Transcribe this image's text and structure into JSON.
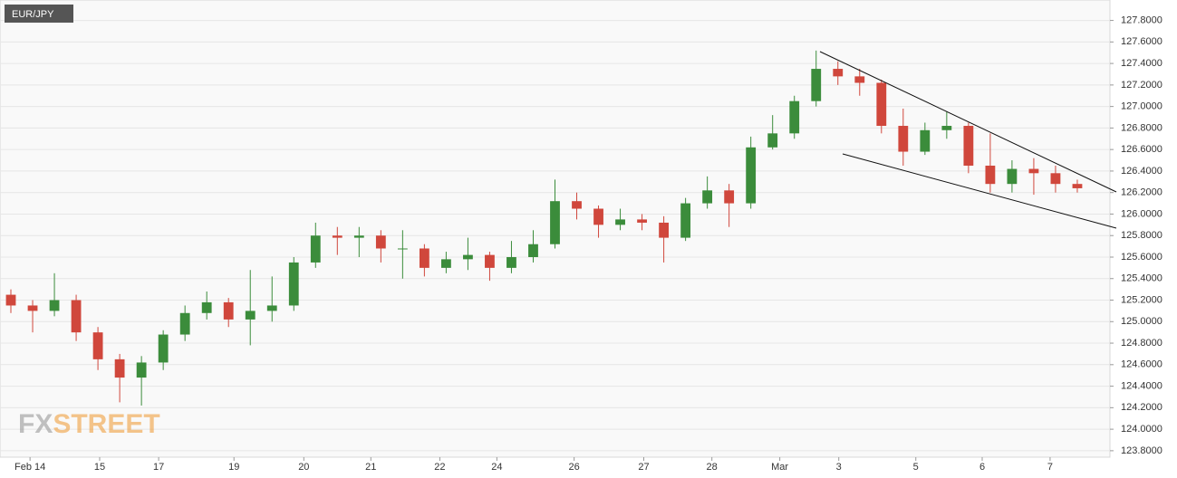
{
  "chart_data": {
    "type": "candlestick",
    "title": "EUR/JPY",
    "brand": [
      "FX",
      "STREET"
    ],
    "up_color": "#3b8c3b",
    "down_color": "#d0473c",
    "grid": true,
    "open": [
      125.25,
      125.15,
      125.1,
      125.2,
      124.9,
      124.65,
      124.48,
      124.62,
      124.88,
      125.08,
      125.18,
      125.02,
      125.1,
      125.15,
      125.55,
      125.8,
      125.78,
      125.8,
      125.68,
      125.68,
      125.5,
      125.58,
      125.62,
      125.5,
      125.6,
      125.72,
      126.12,
      126.05,
      125.9,
      125.95,
      125.92,
      125.78,
      126.1,
      126.22,
      126.1,
      126.62,
      126.75,
      127.05,
      127.35,
      127.28,
      127.22,
      126.82,
      126.58,
      126.78,
      126.82,
      126.45,
      126.28,
      126.42,
      126.38,
      126.28
    ],
    "high": [
      125.3,
      125.2,
      125.45,
      125.25,
      124.95,
      124.7,
      124.68,
      124.92,
      125.15,
      125.28,
      125.22,
      125.48,
      125.42,
      125.6,
      125.92,
      125.88,
      125.88,
      125.85,
      125.85,
      125.72,
      125.65,
      125.78,
      125.65,
      125.75,
      125.85,
      126.32,
      126.2,
      126.08,
      126.05,
      126.0,
      125.98,
      126.15,
      126.35,
      126.28,
      126.72,
      126.92,
      127.1,
      127.52,
      127.42,
      127.35,
      127.25,
      126.98,
      126.85,
      126.95,
      126.85,
      126.75,
      126.5,
      126.52,
      126.45,
      126.32
    ],
    "low": [
      125.08,
      124.9,
      125.05,
      124.82,
      124.55,
      124.25,
      124.22,
      124.55,
      124.82,
      125.02,
      124.95,
      124.78,
      125.0,
      125.1,
      125.5,
      125.62,
      125.6,
      125.55,
      125.4,
      125.42,
      125.45,
      125.48,
      125.38,
      125.45,
      125.55,
      125.68,
      125.95,
      125.78,
      125.85,
      125.85,
      125.55,
      125.75,
      126.05,
      125.88,
      126.05,
      126.6,
      126.7,
      127.0,
      127.2,
      127.1,
      126.75,
      126.45,
      126.55,
      126.7,
      126.38,
      126.2,
      126.2,
      126.18,
      126.2,
      126.2
    ],
    "close": [
      125.15,
      125.1,
      125.2,
      124.9,
      124.65,
      124.48,
      124.62,
      124.88,
      125.08,
      125.18,
      125.02,
      125.1,
      125.15,
      125.55,
      125.8,
      125.78,
      125.8,
      125.68,
      125.68,
      125.5,
      125.58,
      125.62,
      125.5,
      125.6,
      125.72,
      126.12,
      126.05,
      125.9,
      125.95,
      125.92,
      125.78,
      126.1,
      126.22,
      126.1,
      126.62,
      126.75,
      127.05,
      127.35,
      127.28,
      127.22,
      126.82,
      126.58,
      126.78,
      126.82,
      126.45,
      126.28,
      126.42,
      126.38,
      126.28,
      126.24
    ],
    "xlim": [
      -0.5,
      50.5
    ],
    "xticks": [
      {
        "value": 0.88,
        "label": "Feb 14"
      },
      {
        "value": 4.08,
        "label": "15"
      },
      {
        "value": 6.79,
        "label": "17"
      },
      {
        "value": 10.25,
        "label": "19"
      },
      {
        "value": 13.46,
        "label": "20"
      },
      {
        "value": 16.54,
        "label": "21"
      },
      {
        "value": 19.71,
        "label": "22"
      },
      {
        "value": 22.33,
        "label": "24"
      },
      {
        "value": 25.88,
        "label": "26"
      },
      {
        "value": 29.08,
        "label": "27"
      },
      {
        "value": 32.21,
        "label": "28"
      },
      {
        "value": 35.33,
        "label": "Mar"
      },
      {
        "value": 38.04,
        "label": "3"
      },
      {
        "value": 41.58,
        "label": "5"
      },
      {
        "value": 44.63,
        "label": "6"
      },
      {
        "value": 47.75,
        "label": "7"
      }
    ],
    "ylim": [
      123.74,
      127.99
    ],
    "yticks": [
      {
        "value": 123.8,
        "label": "123.8000"
      },
      {
        "value": 124.0,
        "label": "124.0000"
      },
      {
        "value": 124.2,
        "label": "124.2000"
      },
      {
        "value": 124.4,
        "label": "124.4000"
      },
      {
        "value": 124.6,
        "label": "124.6000"
      },
      {
        "value": 124.8,
        "label": "124.8000"
      },
      {
        "value": 125.0,
        "label": "125.0000"
      },
      {
        "value": 125.2,
        "label": "125.2000"
      },
      {
        "value": 125.4,
        "label": "125.4000"
      },
      {
        "value": 125.6,
        "label": "125.6000"
      },
      {
        "value": 125.8,
        "label": "125.8000"
      },
      {
        "value": 126.0,
        "label": "126.0000"
      },
      {
        "value": 126.2,
        "label": "126.2000"
      },
      {
        "value": 126.4,
        "label": "126.4000"
      },
      {
        "value": 126.6,
        "label": "126.6000"
      },
      {
        "value": 126.8,
        "label": "126.8000"
      },
      {
        "value": 127.0,
        "label": "127.0000"
      },
      {
        "value": 127.2,
        "label": "127.2000"
      },
      {
        "value": 127.4,
        "label": "127.4000"
      },
      {
        "value": 127.6,
        "label": "127.6000"
      },
      {
        "value": 127.8,
        "label": "127.8000"
      }
    ]
  }
}
